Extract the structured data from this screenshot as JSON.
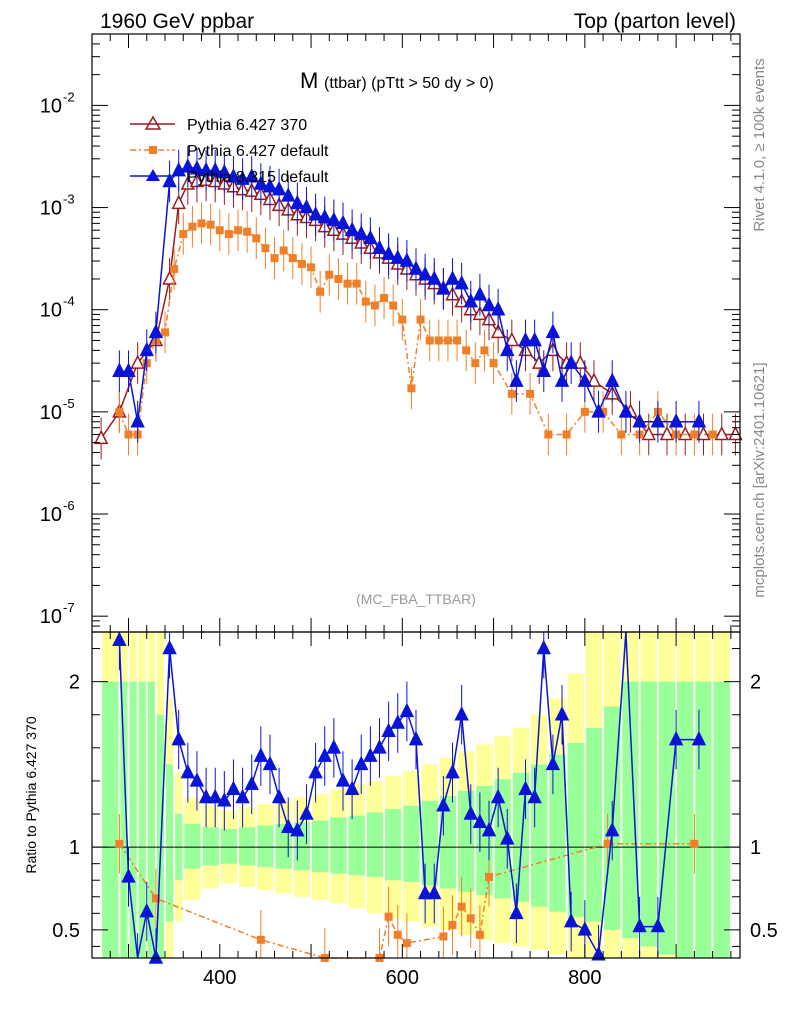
{
  "header": {
    "left": "1960 GeV ppbar",
    "right": "Top (parton level)"
  },
  "side_labels": {
    "rivet": "Rivet 4.1.0, ≥ 100k events",
    "mcplots": "mcplots.cern.ch [arXiv:2401.10621]"
  },
  "chart_data": {
    "type": "line",
    "title_main": "M",
    "title_sub": "(ttbar) (pTtt > 50 dy > 0)",
    "analysis": "(MC_FBA_TTBAR)",
    "xlabel": "",
    "ylabel_ratio": "Ratio to Pythia 6.427 370",
    "xlim": [
      260,
      970
    ],
    "ylim_main": [
      7e-08,
      0.05
    ],
    "ylog": true,
    "ylim_ratio": [
      0.33,
      2.3
    ],
    "x_ticks": [
      400,
      600,
      800
    ],
    "x_tick_labels": [
      "400",
      "600",
      "800"
    ],
    "y_ticks_main": [
      1e-07,
      1e-06,
      1e-05,
      0.0001,
      0.001,
      0.01
    ],
    "y_tick_labels_main": [
      [
        "10",
        "-7"
      ],
      [
        "10",
        "-6"
      ],
      [
        "10",
        "-5"
      ],
      [
        "10",
        "-4"
      ],
      [
        "10",
        "-3"
      ],
      [
        "10",
        "-2"
      ]
    ],
    "y_ticks_ratio": [
      0.5,
      1,
      2
    ],
    "y_tick_labels_ratio": [
      "0.5",
      "1",
      "2"
    ],
    "legend": [
      "Pythia 6.427 370",
      "Pythia 6.427 default",
      "Pythia 8.315 default"
    ],
    "colors": {
      "s370": "#9a1b1e",
      "def6": "#f07f2a",
      "p8": "#0a14d6",
      "band_yellow": "#ffff99",
      "band_green": "#99ff99"
    },
    "series": [
      {
        "name": "Pythia 6.427 370",
        "x": [
          270,
          290,
          310,
          330,
          345,
          355,
          365,
          375,
          385,
          395,
          405,
          415,
          425,
          435,
          445,
          455,
          465,
          475,
          485,
          495,
          505,
          515,
          525,
          535,
          545,
          555,
          565,
          575,
          585,
          595,
          605,
          615,
          625,
          635,
          645,
          655,
          665,
          675,
          685,
          695,
          705,
          720,
          735,
          750,
          765,
          780,
          795,
          810,
          830,
          850,
          870,
          890,
          910,
          930,
          950,
          965
        ],
        "values": [
          5.5e-06,
          1e-05,
          3e-05,
          5e-05,
          0.0002,
          0.0011,
          0.0017,
          0.0018,
          0.00185,
          0.0018,
          0.0017,
          0.0016,
          0.0015,
          0.00145,
          0.00135,
          0.0012,
          0.00105,
          0.00095,
          0.00085,
          0.0008,
          0.00075,
          0.00065,
          0.0006,
          0.00055,
          0.0005,
          0.00045,
          0.0004,
          0.00036,
          0.00032,
          0.00028,
          0.00025,
          0.00022,
          0.0002,
          0.00018,
          0.00016,
          0.00014,
          0.00012,
          0.0001,
          9e-05,
          8e-05,
          6e-05,
          5e-05,
          4e-05,
          3e-05,
          4e-05,
          3e-05,
          3e-05,
          2e-05,
          1.5e-05,
          1e-05,
          6e-06,
          6e-06,
          6e-06,
          6e-06,
          6e-06,
          6e-06
        ]
      },
      {
        "name": "Pythia 6.427 default",
        "x": [
          290,
          300,
          310,
          320,
          330,
          340,
          350,
          360,
          370,
          380,
          390,
          400,
          410,
          420,
          430,
          440,
          450,
          460,
          470,
          480,
          490,
          500,
          510,
          520,
          530,
          540,
          550,
          560,
          570,
          580,
          590,
          600,
          610,
          620,
          630,
          640,
          650,
          660,
          670,
          680,
          690,
          700,
          720,
          740,
          760,
          780,
          800,
          820,
          840,
          860,
          880,
          900,
          920,
          940
        ],
        "values": [
          1e-05,
          6e-06,
          6e-06,
          3e-05,
          5e-05,
          6e-05,
          0.00025,
          0.00055,
          0.00065,
          0.0007,
          0.00068,
          0.0006,
          0.00055,
          0.0006,
          0.00058,
          0.0005,
          0.0004,
          0.00032,
          0.00038,
          0.00032,
          0.00028,
          0.00026,
          0.00015,
          0.00022,
          0.0002,
          0.00018,
          0.00018,
          0.00012,
          0.00011,
          0.00013,
          0.00011,
          8e-05,
          1.7e-05,
          8e-05,
          5e-05,
          5e-05,
          5e-05,
          5e-05,
          4e-05,
          3e-05,
          4e-05,
          3e-05,
          1.5e-05,
          1.5e-05,
          6e-06,
          6e-06,
          1e-05,
          1e-05,
          6e-06,
          6e-06,
          1e-05,
          6e-06,
          6e-06,
          6e-06
        ]
      },
      {
        "name": "Pythia 8.315 default",
        "x": [
          290,
          300,
          310,
          320,
          330,
          345,
          355,
          365,
          375,
          385,
          395,
          405,
          415,
          425,
          435,
          445,
          455,
          465,
          475,
          485,
          495,
          505,
          515,
          525,
          535,
          545,
          555,
          565,
          575,
          585,
          595,
          605,
          615,
          625,
          635,
          645,
          655,
          665,
          675,
          685,
          695,
          705,
          715,
          725,
          735,
          745,
          755,
          765,
          775,
          785,
          800,
          815,
          830,
          845,
          860,
          880,
          900,
          925
        ],
        "values": [
          2.5e-05,
          2.5e-05,
          8e-06,
          4e-05,
          6e-05,
          0.0018,
          0.0023,
          0.0025,
          0.0024,
          0.0023,
          0.0023,
          0.0022,
          0.002,
          0.0019,
          0.002,
          0.0017,
          0.0016,
          0.0015,
          0.0013,
          0.0011,
          0.001,
          0.00085,
          0.0008,
          0.00075,
          0.0007,
          0.0006,
          0.00055,
          0.0005,
          0.0004,
          0.00035,
          0.00032,
          0.0003,
          0.00025,
          0.00022,
          0.0002,
          0.00016,
          0.0002,
          0.00018,
          0.00012,
          0.00014,
          0.00011,
          0.0001,
          4e-05,
          2e-05,
          5e-05,
          5e-05,
          2.5e-05,
          6e-05,
          2e-05,
          3e-05,
          2e-05,
          1e-05,
          2e-05,
          1e-05,
          8e-06,
          8e-06,
          8e-06,
          8e-06
        ]
      }
    ],
    "ratio_series": [
      {
        "name": "Pythia 6.427 default",
        "x": [
          290,
          330,
          445,
          515,
          575,
          585,
          595,
          605,
          645,
          655,
          665,
          675,
          685,
          695,
          825,
          920
        ],
        "values": [
          1.02,
          0.69,
          0.44,
          0.33,
          0.33,
          0.58,
          0.47,
          0.42,
          0.46,
          0.53,
          0.64,
          0.57,
          0.47,
          0.82,
          1.02,
          1.02
        ]
      },
      {
        "name": "Pythia 8.315 default",
        "x": [
          290,
          300,
          310,
          320,
          330,
          345,
          355,
          365,
          375,
          385,
          395,
          405,
          415,
          425,
          435,
          445,
          455,
          465,
          475,
          485,
          495,
          505,
          515,
          525,
          535,
          545,
          555,
          565,
          575,
          585,
          595,
          605,
          615,
          625,
          635,
          645,
          655,
          665,
          675,
          685,
          695,
          705,
          715,
          725,
          735,
          745,
          755,
          765,
          775,
          785,
          800,
          815,
          830,
          845,
          860,
          880,
          900,
          925
        ],
        "values": [
          2.25,
          0.82,
          0.3,
          0.61,
          0.33,
          2.2,
          1.65,
          1.45,
          1.4,
          1.3,
          1.3,
          1.28,
          1.35,
          1.3,
          1.38,
          1.55,
          1.5,
          1.3,
          1.12,
          1.1,
          1.2,
          1.45,
          1.55,
          1.6,
          1.4,
          1.35,
          1.5,
          1.55,
          1.6,
          1.7,
          1.75,
          1.82,
          1.65,
          0.72,
          0.72,
          1.25,
          1.45,
          1.8,
          1.2,
          1.15,
          1.1,
          1.3,
          1.05,
          0.6,
          1.35,
          1.3,
          2.2,
          1.5,
          1.8,
          0.55,
          0.5,
          0.35,
          1.1,
          2.4,
          0.52,
          0.52,
          1.65,
          1.65
        ]
      }
    ],
    "bands": {
      "x_edges": [
        270,
        290,
        300,
        310,
        320,
        330,
        340,
        350,
        360,
        380,
        400,
        420,
        440,
        460,
        480,
        500,
        520,
        540,
        560,
        580,
        600,
        620,
        640,
        660,
        680,
        700,
        720,
        740,
        760,
        780,
        800,
        820,
        840,
        860,
        880,
        900,
        920,
        940,
        960
      ],
      "yellow_lo": [
        0.33,
        0.33,
        0.33,
        0.33,
        0.33,
        0.33,
        0.33,
        0.55,
        0.68,
        0.75,
        0.78,
        0.76,
        0.74,
        0.72,
        0.7,
        0.68,
        0.66,
        0.63,
        0.6,
        0.57,
        0.55,
        0.52,
        0.5,
        0.47,
        0.44,
        0.42,
        0.4,
        0.38,
        0.35,
        0.33,
        0.33,
        0.33,
        0.33,
        0.33,
        0.33,
        0.33,
        0.33,
        0.33
      ],
      "yellow_hi": [
        2.3,
        2.3,
        2.3,
        2.3,
        2.3,
        2.3,
        1.9,
        1.45,
        1.3,
        1.25,
        1.22,
        1.24,
        1.26,
        1.28,
        1.3,
        1.32,
        1.35,
        1.38,
        1.4,
        1.43,
        1.46,
        1.5,
        1.54,
        1.58,
        1.62,
        1.67,
        1.72,
        1.8,
        1.9,
        2.05,
        2.3,
        2.3,
        2.3,
        2.3,
        2.3,
        2.3,
        2.3,
        2.3
      ],
      "green_lo": [
        0.33,
        0.33,
        0.33,
        0.33,
        0.33,
        0.33,
        0.55,
        0.8,
        0.87,
        0.89,
        0.9,
        0.89,
        0.88,
        0.87,
        0.86,
        0.85,
        0.84,
        0.83,
        0.82,
        0.8,
        0.79,
        0.77,
        0.75,
        0.73,
        0.71,
        0.69,
        0.67,
        0.64,
        0.61,
        0.58,
        0.55,
        0.5,
        0.45,
        0.4,
        0.35,
        0.33,
        0.33,
        0.33
      ],
      "green_hi": [
        2.0,
        2.0,
        2.0,
        2.0,
        2.0,
        1.8,
        1.5,
        1.2,
        1.14,
        1.12,
        1.11,
        1.12,
        1.13,
        1.14,
        1.15,
        1.16,
        1.18,
        1.19,
        1.21,
        1.23,
        1.25,
        1.28,
        1.31,
        1.34,
        1.37,
        1.41,
        1.45,
        1.5,
        1.56,
        1.63,
        1.72,
        1.85,
        2.0,
        2.0,
        2.0,
        2.0,
        2.0,
        2.0
      ]
    }
  }
}
